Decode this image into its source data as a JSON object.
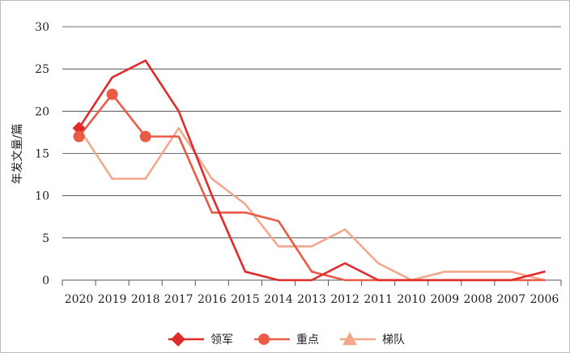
{
  "chart_data": {
    "type": "line",
    "title": "",
    "xlabel": "",
    "ylabel": "年发文量/篇",
    "ylim": [
      0,
      30
    ],
    "yticks": [
      0,
      5,
      10,
      15,
      20,
      25,
      30
    ],
    "grid": "horizontal",
    "legend_position": "bottom",
    "categories": [
      "2020",
      "2019",
      "2018",
      "2017",
      "2016",
      "2015",
      "2014",
      "2013",
      "2012",
      "2011",
      "2010",
      "2009",
      "2008",
      "2007",
      "2006"
    ],
    "series": [
      {
        "name": "领军",
        "color": "#e12b2b",
        "marker": "diamond",
        "values": [
          18,
          24,
          26,
          20,
          10,
          1,
          0,
          0,
          2,
          0,
          0,
          0,
          0,
          0,
          1
        ]
      },
      {
        "name": "重点",
        "color": "#ea5a45",
        "marker": "circle",
        "values": [
          17,
          22,
          17,
          17,
          8,
          8,
          7,
          1,
          0,
          0,
          0,
          0,
          0,
          0,
          0
        ]
      },
      {
        "name": "梯队",
        "color": "#f3a88c",
        "marker": "triangle",
        "values": [
          18,
          12,
          12,
          18,
          12,
          9,
          4,
          4,
          6,
          2,
          0,
          1,
          1,
          1,
          0
        ]
      }
    ]
  }
}
